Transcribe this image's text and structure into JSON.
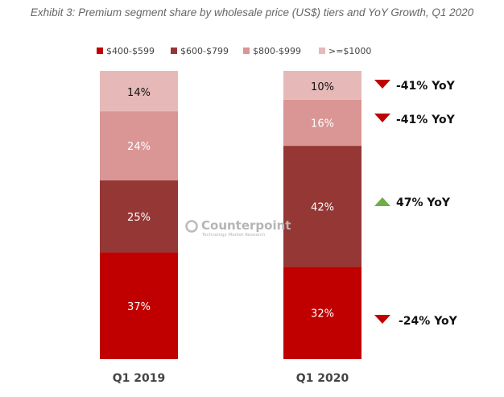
{
  "chart_data": {
    "type": "bar",
    "stacked": true,
    "title": "Exhibit 3: Premium segment share by wholesale price (US$) tiers and YoY Growth, Q1 2020",
    "categories": [
      "Q1 2019",
      "Q1 2020"
    ],
    "ylim": [
      0,
      100
    ],
    "grid": false,
    "legend_position": "top",
    "series": [
      {
        "name": "$400-$599",
        "color": "#c00000",
        "values": [
          37,
          32
        ],
        "labels": [
          "37%",
          "32%"
        ],
        "label_color": "#ffffff"
      },
      {
        "name": "$600-$799",
        "color": "#953735",
        "values": [
          25,
          42
        ],
        "labels": [
          "25%",
          "42%"
        ],
        "label_color": "#ffffff"
      },
      {
        "name": "$800-$999",
        "color": "#d99694",
        "values": [
          24,
          16
        ],
        "labels": [
          "24%",
          "16%"
        ],
        "label_color": "#ffffff"
      },
      {
        "name": ">=$1000",
        "color": "#e6b9b8",
        "values": [
          14,
          10
        ],
        "labels": [
          "14%",
          "10%"
        ],
        "label_color": "#111111"
      }
    ],
    "annotations": [
      {
        "series": ">=$1000",
        "text": "-41% YoY",
        "direction": "down",
        "color": "#c00000"
      },
      {
        "series": "$800-$999",
        "text": "-41% YoY",
        "direction": "down",
        "color": "#c00000"
      },
      {
        "series": "$600-$799",
        "text": "47% YoY",
        "direction": "up",
        "color": "#70ad47"
      },
      {
        "series": "$400-$599",
        "text": "-24% YoY",
        "direction": "down",
        "color": "#c00000"
      }
    ],
    "watermark": {
      "name": "Counterpoint",
      "tagline": "Technology Market Research"
    }
  }
}
